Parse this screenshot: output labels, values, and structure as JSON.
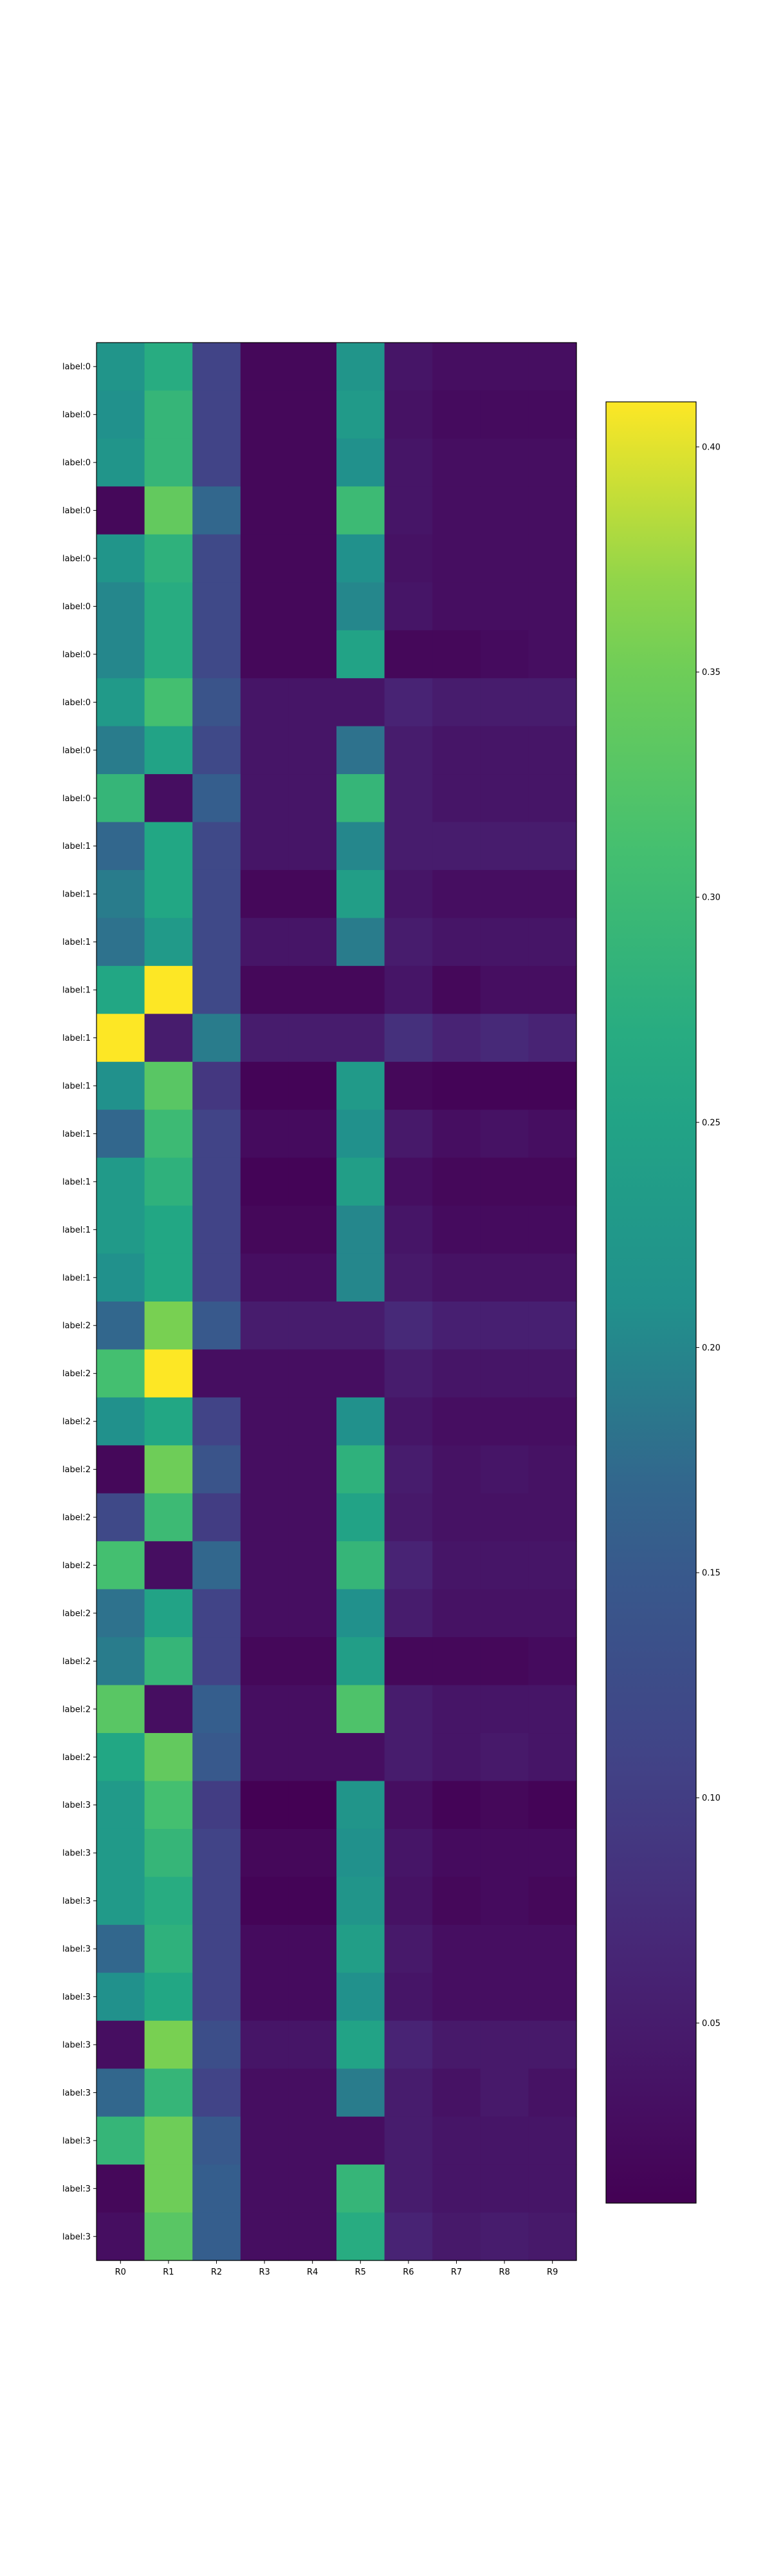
{
  "chart_data": {
    "type": "heatmap",
    "title": "",
    "xlabel": "",
    "ylabel": "",
    "colormap": "viridis",
    "grid": false,
    "colorbar": {
      "position": "right",
      "vmin": 0.01,
      "vmax": 0.41,
      "ticks": [
        0.05,
        0.1,
        0.15,
        0.2,
        0.25,
        0.3,
        0.35,
        0.4
      ],
      "tick_labels": [
        "0.05",
        "0.10",
        "0.15",
        "0.20",
        "0.25",
        "0.30",
        "0.35",
        "0.40"
      ]
    },
    "x_tick_labels": [
      "R0",
      "R1",
      "R2",
      "R3",
      "R4",
      "R5",
      "R6",
      "R7",
      "R8",
      "R9"
    ],
    "y_tick_labels": [
      "label:0",
      "label:0",
      "label:0",
      "label:0",
      "label:0",
      "label:0",
      "label:0",
      "label:0",
      "label:0",
      "label:0",
      "label:1",
      "label:1",
      "label:1",
      "label:1",
      "label:1",
      "label:1",
      "label:1",
      "label:1",
      "label:1",
      "label:1",
      "label:2",
      "label:2",
      "label:2",
      "label:2",
      "label:2",
      "label:2",
      "label:2",
      "label:2",
      "label:2",
      "label:2",
      "label:3",
      "label:3",
      "label:3",
      "label:3",
      "label:3",
      "label:3",
      "label:3",
      "label:3",
      "label:3",
      "label:3"
    ],
    "values": [
      [
        0.22,
        0.27,
        0.11,
        0.02,
        0.02,
        0.22,
        0.04,
        0.03,
        0.03,
        0.03
      ],
      [
        0.21,
        0.29,
        0.11,
        0.02,
        0.02,
        0.23,
        0.035,
        0.025,
        0.025,
        0.025
      ],
      [
        0.22,
        0.29,
        0.11,
        0.02,
        0.02,
        0.21,
        0.04,
        0.03,
        0.03,
        0.03
      ],
      [
        0.02,
        0.34,
        0.17,
        0.02,
        0.02,
        0.3,
        0.04,
        0.03,
        0.03,
        0.03
      ],
      [
        0.22,
        0.28,
        0.12,
        0.02,
        0.02,
        0.21,
        0.035,
        0.03,
        0.03,
        0.03
      ],
      [
        0.2,
        0.27,
        0.12,
        0.02,
        0.02,
        0.2,
        0.04,
        0.03,
        0.03,
        0.03
      ],
      [
        0.2,
        0.27,
        0.12,
        0.02,
        0.02,
        0.25,
        0.02,
        0.02,
        0.025,
        0.03
      ],
      [
        0.23,
        0.31,
        0.14,
        0.04,
        0.04,
        0.04,
        0.06,
        0.05,
        0.05,
        0.05
      ],
      [
        0.19,
        0.25,
        0.12,
        0.04,
        0.04,
        0.18,
        0.05,
        0.04,
        0.04,
        0.04
      ],
      [
        0.29,
        0.03,
        0.16,
        0.04,
        0.04,
        0.29,
        0.05,
        0.04,
        0.04,
        0.04
      ],
      [
        0.17,
        0.26,
        0.12,
        0.04,
        0.04,
        0.2,
        0.05,
        0.05,
        0.05,
        0.05
      ],
      [
        0.19,
        0.26,
        0.12,
        0.02,
        0.02,
        0.24,
        0.04,
        0.03,
        0.03,
        0.03
      ],
      [
        0.18,
        0.23,
        0.12,
        0.04,
        0.04,
        0.19,
        0.05,
        0.04,
        0.04,
        0.04
      ],
      [
        0.26,
        0.41,
        0.12,
        0.02,
        0.02,
        0.02,
        0.04,
        0.02,
        0.03,
        0.03
      ],
      [
        0.41,
        0.05,
        0.19,
        0.05,
        0.05,
        0.05,
        0.08,
        0.06,
        0.07,
        0.06
      ],
      [
        0.21,
        0.33,
        0.09,
        0.015,
        0.015,
        0.23,
        0.02,
        0.015,
        0.015,
        0.015
      ],
      [
        0.17,
        0.3,
        0.11,
        0.025,
        0.025,
        0.21,
        0.045,
        0.03,
        0.035,
        0.03
      ],
      [
        0.23,
        0.28,
        0.11,
        0.015,
        0.015,
        0.24,
        0.03,
        0.02,
        0.02,
        0.02
      ],
      [
        0.23,
        0.26,
        0.11,
        0.02,
        0.02,
        0.2,
        0.04,
        0.025,
        0.025,
        0.025
      ],
      [
        0.21,
        0.26,
        0.11,
        0.03,
        0.03,
        0.2,
        0.045,
        0.035,
        0.035,
        0.035
      ],
      [
        0.17,
        0.36,
        0.15,
        0.05,
        0.05,
        0.05,
        0.07,
        0.055,
        0.055,
        0.055
      ],
      [
        0.31,
        0.41,
        0.03,
        0.03,
        0.03,
        0.03,
        0.05,
        0.04,
        0.04,
        0.04
      ],
      [
        0.21,
        0.26,
        0.11,
        0.03,
        0.03,
        0.21,
        0.04,
        0.03,
        0.03,
        0.03
      ],
      [
        0.02,
        0.35,
        0.14,
        0.03,
        0.03,
        0.28,
        0.05,
        0.035,
        0.04,
        0.035
      ],
      [
        0.12,
        0.3,
        0.1,
        0.03,
        0.03,
        0.25,
        0.045,
        0.035,
        0.035,
        0.035
      ],
      [
        0.31,
        0.03,
        0.17,
        0.03,
        0.03,
        0.29,
        0.06,
        0.04,
        0.04,
        0.04
      ],
      [
        0.18,
        0.25,
        0.11,
        0.03,
        0.03,
        0.21,
        0.05,
        0.035,
        0.035,
        0.035
      ],
      [
        0.19,
        0.29,
        0.11,
        0.02,
        0.02,
        0.24,
        0.02,
        0.02,
        0.02,
        0.025
      ],
      [
        0.33,
        0.03,
        0.16,
        0.03,
        0.03,
        0.32,
        0.05,
        0.04,
        0.04,
        0.04
      ],
      [
        0.26,
        0.34,
        0.15,
        0.03,
        0.03,
        0.03,
        0.05,
        0.04,
        0.045,
        0.04
      ],
      [
        0.23,
        0.31,
        0.1,
        0.01,
        0.01,
        0.22,
        0.03,
        0.015,
        0.02,
        0.015
      ],
      [
        0.23,
        0.29,
        0.11,
        0.02,
        0.02,
        0.21,
        0.04,
        0.025,
        0.025,
        0.025
      ],
      [
        0.23,
        0.27,
        0.11,
        0.015,
        0.015,
        0.22,
        0.035,
        0.02,
        0.025,
        0.02
      ],
      [
        0.17,
        0.28,
        0.11,
        0.025,
        0.025,
        0.24,
        0.045,
        0.03,
        0.03,
        0.03
      ],
      [
        0.21,
        0.26,
        0.11,
        0.025,
        0.025,
        0.21,
        0.04,
        0.03,
        0.03,
        0.03
      ],
      [
        0.03,
        0.36,
        0.13,
        0.04,
        0.04,
        0.25,
        0.06,
        0.045,
        0.045,
        0.045
      ],
      [
        0.17,
        0.29,
        0.11,
        0.03,
        0.03,
        0.19,
        0.05,
        0.035,
        0.045,
        0.035
      ],
      [
        0.29,
        0.35,
        0.15,
        0.03,
        0.03,
        0.03,
        0.05,
        0.04,
        0.04,
        0.04
      ],
      [
        0.02,
        0.35,
        0.16,
        0.03,
        0.03,
        0.29,
        0.05,
        0.04,
        0.04,
        0.04
      ],
      [
        0.03,
        0.33,
        0.16,
        0.03,
        0.03,
        0.27,
        0.06,
        0.045,
        0.05,
        0.045
      ]
    ]
  }
}
